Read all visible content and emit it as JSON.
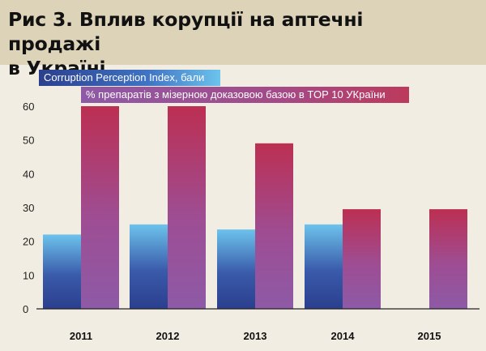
{
  "title": {
    "line1": "Рис 3. Вплив корупції на аптечні продажі",
    "line2": "в Україні."
  },
  "chart_data": {
    "type": "bar",
    "categories": [
      "2011",
      "2012",
      "2013",
      "2014",
      "2015"
    ],
    "series": [
      {
        "name": "Corruption Perception Index, бали",
        "values": [
          22,
          25,
          23.5,
          25,
          null
        ]
      },
      {
        "name": "% препаратів з мізерною доказовою базою в TOP 10 УКраїни",
        "values": [
          60,
          60,
          49,
          29.5,
          29.5
        ]
      }
    ],
    "yticks": [
      0,
      10,
      20,
      30,
      40,
      50,
      60
    ],
    "ylim": [
      0,
      60
    ],
    "grid": false,
    "legend_position": "top-left"
  },
  "colors": {
    "cpi_top": "#6cc3ec",
    "cpi_bottom": "#2b3f8e",
    "pct_top": "#bc2f52",
    "pct_bottom": "#8e5aa6",
    "banner": "#ddd3b8",
    "background": "#f1ede2"
  }
}
